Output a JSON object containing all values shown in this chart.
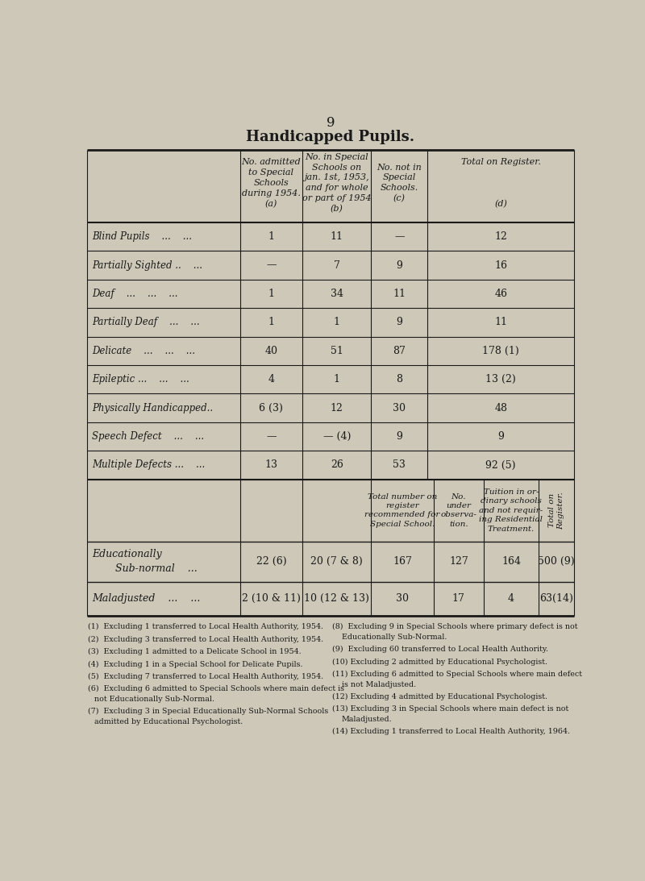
{
  "page_number": "9",
  "title": "Handicapped Pupils.",
  "bg_color": "#cdc8b8",
  "text_color": "#1a1a1a",
  "main_rows": [
    {
      "label": "Blind Pupils    ...    ...",
      "a": "1",
      "b": "11",
      "c": "—",
      "d": "12"
    },
    {
      "label": "Partially Sighted ..    ...",
      "a": "—",
      "b": "7",
      "c": "9",
      "d": "16"
    },
    {
      "label": "Deaf    ...    ...    ...",
      "a": "1",
      "b": "34",
      "c": "11",
      "d": "46"
    },
    {
      "label": "Partially Deaf    ...    ...",
      "a": "1",
      "b": "1",
      "c": "9",
      "d": "11"
    },
    {
      "label": "Delicate    ...    ...    ...",
      "a": "40",
      "b": "51",
      "c": "87",
      "d": "178 (1)"
    },
    {
      "label": "Epileptic ...    ...    ...",
      "a": "4",
      "b": "1",
      "c": "8",
      "d": "13 (2)"
    },
    {
      "label": "Physically Handicapped..",
      "a": "6 (3)",
      "b": "12",
      "c": "30",
      "d": "48"
    },
    {
      "label": "Speech Defect    ...    ...",
      "a": "—",
      "b": "— (4)",
      "c": "9",
      "d": "9"
    },
    {
      "label": "Multiple Defects ...    ...",
      "a": "13",
      "b": "26",
      "c": "53",
      "d": "92 (5)"
    }
  ],
  "esn_row": {
    "label1": "Educationally",
    "label2": "    Sub-normal    ...",
    "a": "22 (6)",
    "b": "20 (7 & 8)",
    "c": "167",
    "d": "127",
    "e": "164",
    "f": "500 (9)"
  },
  "mal_row": {
    "label": "Maladjusted    ...    ...",
    "a": "2 (10 & 11)",
    "b": "10 (12 & 13)",
    "c": "30",
    "d": "17",
    "e": "4",
    "f": "63(14)"
  },
  "fn_left": [
    "(1)  Excluding 1 transferred to Local Health Authority, 1954.",
    "(2)  Excluding 3 transferred to Local Health Authority, 1954.",
    "(3)  Excluding 1 admitted to a Delicate School in 1954.",
    "(4)  Excluding 1 in a Special School for Delicate Pupils.",
    "(5)  Excluding 7 transferred to Local Health Authority, 1954.",
    "(6)  Excluding 6 admitted to Special Schools where main defect is\n       not Educationally Sub-Normal.",
    "(7)  Excluding 3 in Special Educationally Sub-Normal Schools\n       admitted by Educational Psychologist."
  ],
  "fn_right": [
    "(8)  Excluding 9 in Special Schools where primary defect is not\n       Educationally Sub-Normal.",
    "(9)  Excluding 60 transferred to Local Health Authority.",
    "(10) Excluding 2 admitted by Educational Psychologist.",
    "(11) Excluding 6 admitted to Special Schools where main defect\n       is not Maladjusted.",
    "(12) Excluding 4 admitted by Educational Psychologist.",
    "(13) Excluding 3 in Special Schools where main defect is not\n       Maladjusted.",
    "(14) Excluding 1 transferred to Local Health Authority, 1964."
  ]
}
